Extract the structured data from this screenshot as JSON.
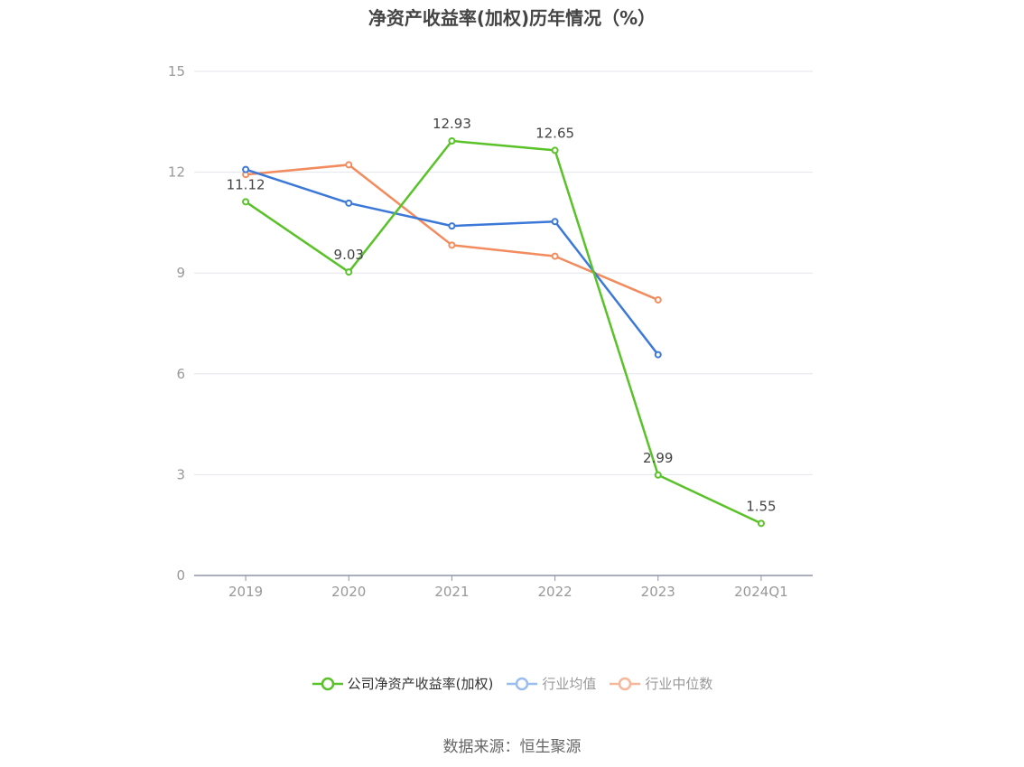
{
  "chart_data": {
    "type": "line",
    "title": "净资产收益率(加权)历年情况（%）",
    "categories": [
      "2019",
      "2020",
      "2021",
      "2022",
      "2023",
      "2024Q1"
    ],
    "ylim": [
      0,
      15
    ],
    "yticks": [
      0,
      3,
      6,
      9,
      12,
      15
    ],
    "grid": true,
    "legend_position": "bottom",
    "series": [
      {
        "name": "公司净资产收益率(加权)",
        "color": "#5ac229",
        "values": [
          11.12,
          9.03,
          12.93,
          12.65,
          2.99,
          1.55
        ],
        "labels": [
          "11.12",
          "9.03",
          "12.93",
          "12.65",
          "2.99",
          "1.55"
        ]
      },
      {
        "name": "行业均值",
        "color": "#3c78d8",
        "legend_color": "#9bbcee",
        "values": [
          12.08,
          11.08,
          10.4,
          10.53,
          6.57,
          null
        ]
      },
      {
        "name": "行业中位数",
        "color": "#f28b5e",
        "legend_color": "#f7b79a",
        "values": [
          11.93,
          12.22,
          9.83,
          9.5,
          8.2,
          null
        ]
      }
    ]
  },
  "source": "数据来源：恒生聚源"
}
